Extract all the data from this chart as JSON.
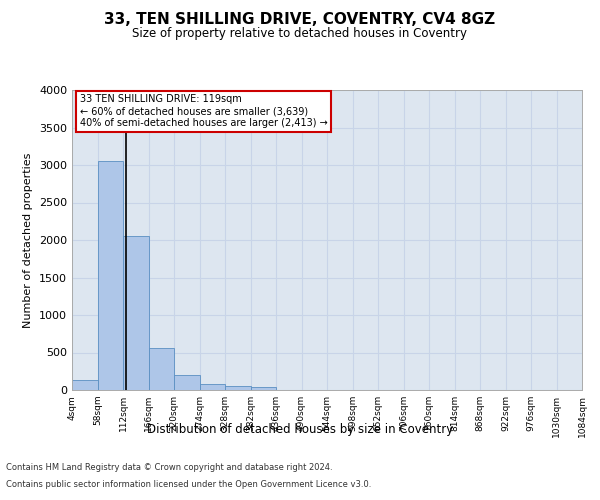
{
  "title": "33, TEN SHILLING DRIVE, COVENTRY, CV4 8GZ",
  "subtitle": "Size of property relative to detached houses in Coventry",
  "xlabel": "Distribution of detached houses by size in Coventry",
  "ylabel": "Number of detached properties",
  "footer_line1": "Contains HM Land Registry data © Crown copyright and database right 2024.",
  "footer_line2": "Contains public sector information licensed under the Open Government Licence v3.0.",
  "annotation_title": "33 TEN SHILLING DRIVE: 119sqm",
  "annotation_line1": "← 60% of detached houses are smaller (3,639)",
  "annotation_line2": "40% of semi-detached houses are larger (2,413) →",
  "property_size": 119,
  "bar_edges": [
    4,
    58,
    112,
    166,
    220,
    274,
    328,
    382,
    436,
    490,
    544,
    598,
    652,
    706,
    760,
    814,
    868,
    922,
    976,
    1030,
    1084
  ],
  "bar_heights": [
    130,
    3060,
    2060,
    560,
    195,
    75,
    55,
    35,
    0,
    0,
    0,
    0,
    0,
    0,
    0,
    0,
    0,
    0,
    0,
    0
  ],
  "bar_color": "#aec6e8",
  "bar_edge_color": "#5a8fc2",
  "vline_color": "black",
  "vline_x": 119,
  "grid_color": "#c8d4e8",
  "axes_bg_color": "#dde6f0",
  "annotation_box_color": "#cc0000",
  "ylim": [
    0,
    4000
  ],
  "yticks": [
    0,
    500,
    1000,
    1500,
    2000,
    2500,
    3000,
    3500,
    4000
  ]
}
